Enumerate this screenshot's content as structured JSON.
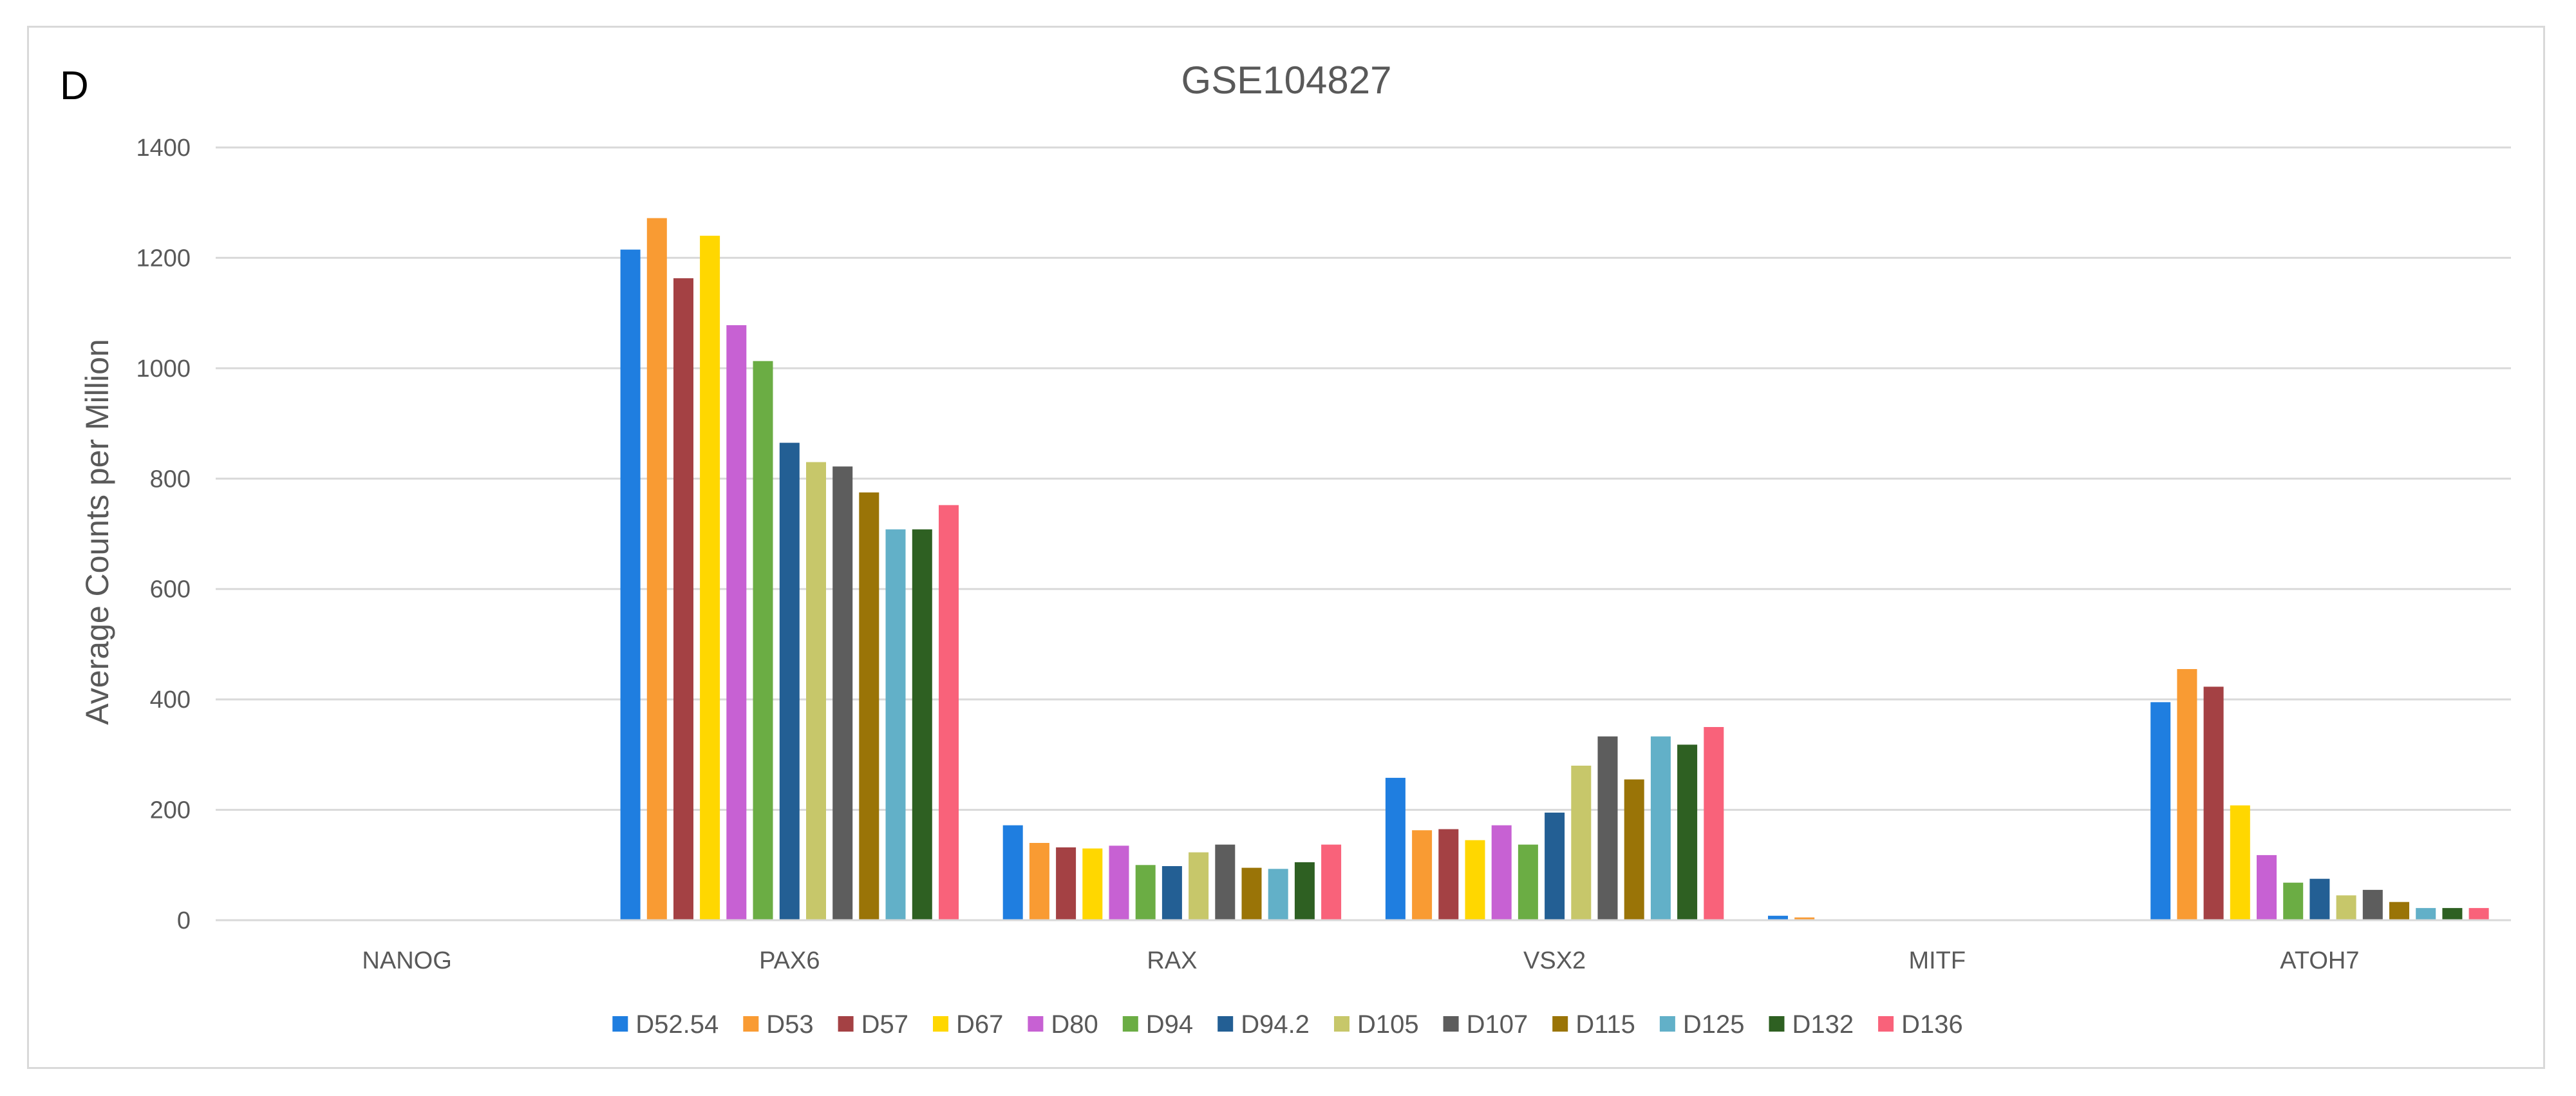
{
  "panel_label": "D",
  "chart_data": {
    "type": "bar",
    "title": "GSE104827",
    "xlabel": "",
    "ylabel": "Average Counts per Million",
    "ylim": [
      0,
      1400
    ],
    "yticks": [
      0,
      200,
      400,
      600,
      800,
      1000,
      1200,
      1400
    ],
    "grid": true,
    "legend_position": "bottom",
    "categories": [
      "NANOG",
      "PAX6",
      "RAX",
      "VSX2",
      "MITF",
      "ATOH7"
    ],
    "series": [
      {
        "name": "D52.54",
        "color": "#1f7ee0",
        "values": [
          0,
          1215,
          172,
          258,
          8,
          395
        ]
      },
      {
        "name": "D53",
        "color": "#f99b33",
        "values": [
          0,
          1272,
          140,
          163,
          5,
          455
        ]
      },
      {
        "name": "D57",
        "color": "#a44144",
        "values": [
          0,
          1163,
          132,
          165,
          0,
          423
        ]
      },
      {
        "name": "D67",
        "color": "#ffd700",
        "values": [
          0,
          1240,
          130,
          145,
          0,
          208
        ]
      },
      {
        "name": "D80",
        "color": "#c761d3",
        "values": [
          0,
          1078,
          135,
          172,
          0,
          118
        ]
      },
      {
        "name": "D94",
        "color": "#6bad44",
        "values": [
          0,
          1013,
          100,
          137,
          0,
          68
        ]
      },
      {
        "name": "D94.2",
        "color": "#235f94",
        "values": [
          0,
          865,
          98,
          195,
          0,
          75
        ]
      },
      {
        "name": "D105",
        "color": "#c7c76a",
        "values": [
          0,
          830,
          123,
          280,
          0,
          45
        ]
      },
      {
        "name": "D107",
        "color": "#5d5d5d",
        "values": [
          0,
          822,
          137,
          333,
          0,
          55
        ]
      },
      {
        "name": "D115",
        "color": "#9a7407",
        "values": [
          0,
          775,
          95,
          255,
          0,
          33
        ]
      },
      {
        "name": "D125",
        "color": "#62b0c8",
        "values": [
          0,
          708,
          93,
          333,
          0,
          22
        ]
      },
      {
        "name": "D132",
        "color": "#2e6022",
        "values": [
          0,
          708,
          105,
          318,
          0,
          22
        ]
      },
      {
        "name": "D136",
        "color": "#f9627a",
        "values": [
          0,
          752,
          137,
          350,
          0,
          22
        ]
      }
    ]
  }
}
